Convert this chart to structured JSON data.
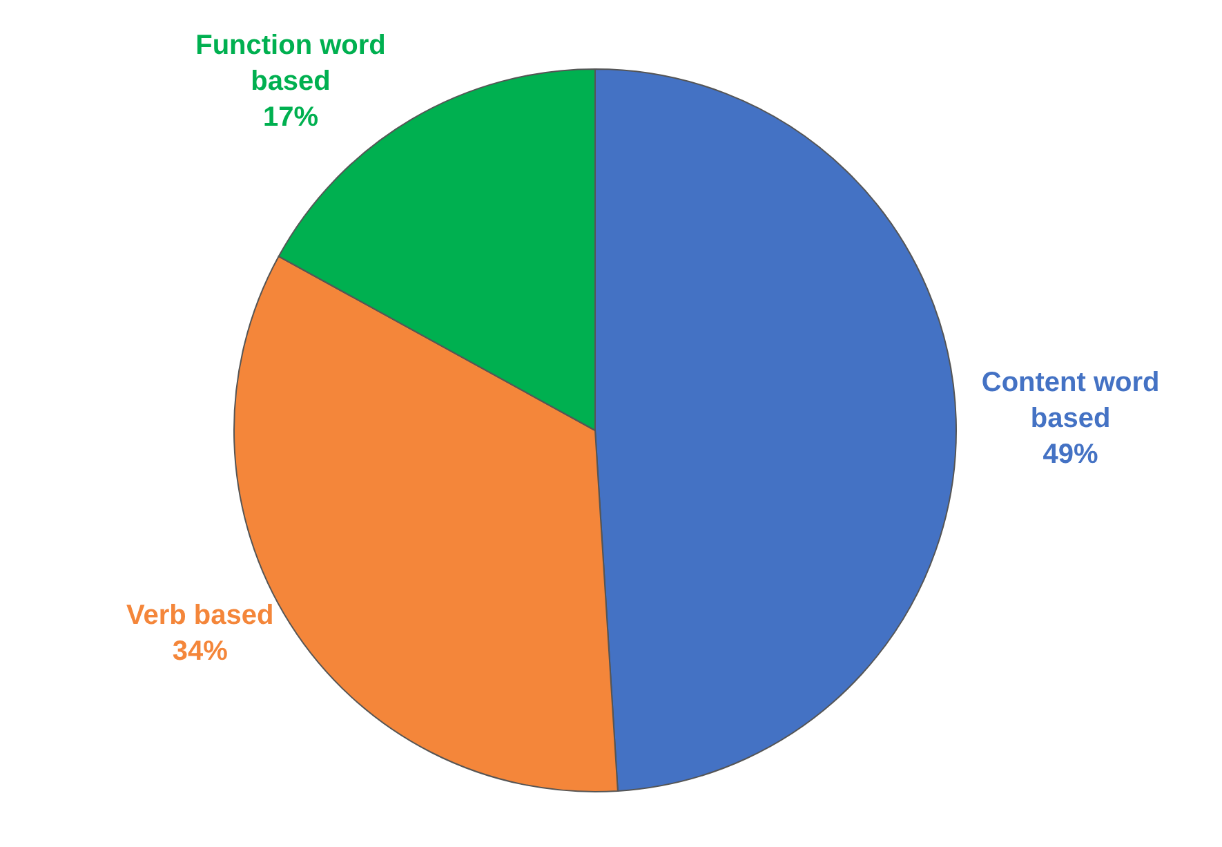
{
  "chart_data": {
    "type": "pie",
    "categories": [
      "Content word based",
      "Verb based",
      "Function word based"
    ],
    "values": [
      49,
      34,
      17
    ],
    "colors": [
      "#4472c4",
      "#f4863a",
      "#00b050"
    ],
    "value_labels": [
      "49%",
      "34%",
      "17%"
    ],
    "legend": false
  }
}
